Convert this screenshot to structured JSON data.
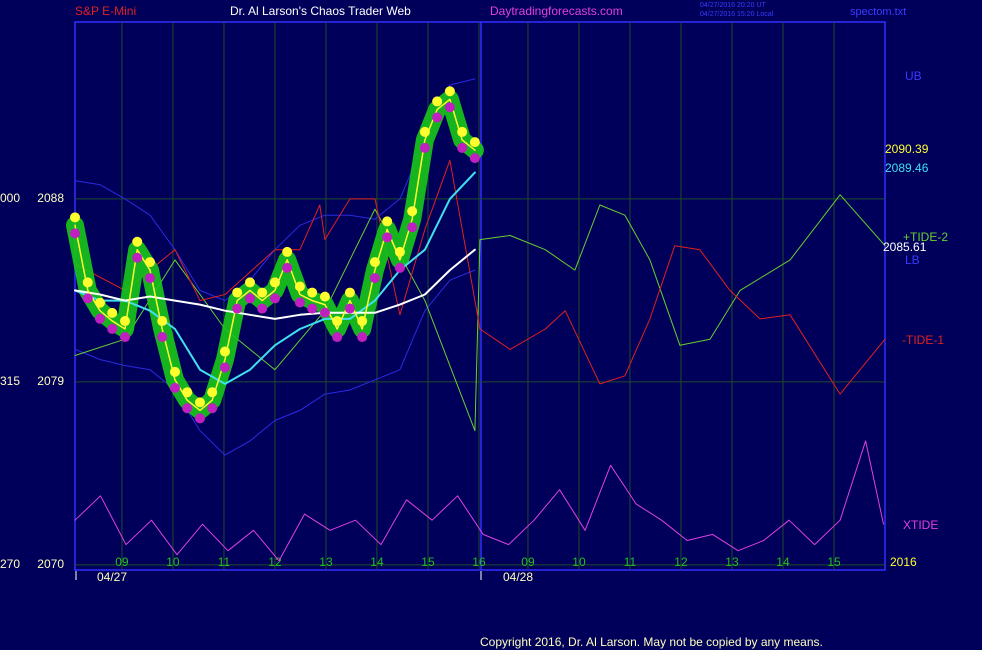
{
  "chart_data": {
    "type": "line",
    "title": "Dr. Al Larson's Chaos Trader Web",
    "subtitle": "S&P E-Mini",
    "annotations": [
      "Daytradingforecasts.com",
      "04/27/2016 20:20 UT",
      "04/27/2016 15:20 Local",
      "spectom.txt",
      "2090.39",
      "2089.46",
      "2085.61",
      "2016",
      "000",
      "315",
      "270",
      "Copyright 2016, Dr. Al Larson. May not be copied by any means."
    ],
    "dates": [
      "04/27",
      "04/28"
    ],
    "xlim": [
      0,
      15.88
    ],
    "ylim": [
      2069.75,
      2096.7
    ],
    "yticks": [
      2070,
      2079,
      2088
    ],
    "xticks": [
      {
        "value": 0.92,
        "label": "09"
      },
      {
        "value": 1.92,
        "label": "10"
      },
      {
        "value": 2.92,
        "label": "11"
      },
      {
        "value": 3.92,
        "label": "12"
      },
      {
        "value": 4.92,
        "label": "13"
      },
      {
        "value": 5.92,
        "label": "14"
      },
      {
        "value": 6.92,
        "label": "15"
      },
      {
        "value": 7.92,
        "label": "16"
      },
      {
        "value": 8.88,
        "label": "09"
      },
      {
        "value": 9.88,
        "label": "10"
      },
      {
        "value": 10.88,
        "label": "11"
      },
      {
        "value": 11.88,
        "label": "12"
      },
      {
        "value": 12.88,
        "label": "13"
      },
      {
        "value": 13.88,
        "label": "14"
      },
      {
        "value": 14.88,
        "label": "15"
      }
    ],
    "grid": true,
    "series": [
      {
        "name": "UB",
        "color": "#2a2ae0",
        "width": 1,
        "x": [
          0,
          0.49,
          0.98,
          1.47,
          1.96,
          2.45,
          2.94,
          3.43,
          3.92,
          4.41,
          4.9,
          5.39,
          5.88,
          6.37,
          6.86,
          7.35,
          7.84
        ],
        "values": [
          2088.9,
          2088.7,
          2088.0,
          2087.2,
          2085.5,
          2083.5,
          2083.0,
          2084.0,
          2085.5,
          2086.7,
          2087.2,
          2087.2,
          2087.0,
          2088.0,
          2090.9,
          2093.6,
          2093.9
        ]
      },
      {
        "name": "LB",
        "color": "#2a2ae0",
        "width": 1,
        "x": [
          0,
          0.49,
          0.98,
          1.47,
          1.96,
          2.45,
          2.94,
          3.43,
          3.92,
          4.41,
          4.9,
          5.39,
          5.88,
          6.37,
          6.86,
          7.35,
          7.84
        ],
        "values": [
          2080.6,
          2080.1,
          2079.8,
          2079.6,
          2078.6,
          2076.6,
          2075.4,
          2076.1,
          2077.1,
          2077.6,
          2078.4,
          2078.6,
          2079.1,
          2079.6,
          2082.5,
          2084.0,
          2084.5
        ]
      },
      {
        "name": "+TIDE-2",
        "color": "#66d030",
        "width": 1,
        "x": [
          0,
          0.98,
          1.96,
          2.94,
          3.92,
          4.9,
          5.88,
          6.86,
          7.84,
          7.94,
          8.53,
          9.22,
          9.8,
          10.29,
          10.78,
          11.27,
          11.86,
          12.45,
          13.04,
          14.02,
          15.0,
          15.88
        ],
        "values": [
          2080.3,
          2081.1,
          2085.0,
          2081.6,
          2079.6,
          2082.5,
          2087.5,
          2083.0,
          2076.6,
          2086.0,
          2086.2,
          2085.5,
          2084.5,
          2087.7,
          2087.2,
          2085.0,
          2080.8,
          2081.1,
          2083.5,
          2085.0,
          2088.2,
          2085.7
        ]
      },
      {
        "name": "-TIDE-1",
        "color": "#e02020",
        "width": 1,
        "x": [
          0,
          0.98,
          1.96,
          2.45,
          2.94,
          3.92,
          4.41,
          4.8,
          4.9,
          5.39,
          5.88,
          6.37,
          6.86,
          7.35,
          7.94,
          8.53,
          9.22,
          9.61,
          10.29,
          10.78,
          11.27,
          11.76,
          12.25,
          12.84,
          13.43,
          14.02,
          15.0,
          15.88
        ],
        "values": [
          2084.8,
          2083.5,
          2085.5,
          2083.0,
          2083.3,
          2085.5,
          2085.5,
          2087.7,
          2086.0,
          2088.0,
          2088.0,
          2082.3,
          2086.5,
          2089.9,
          2081.6,
          2080.6,
          2081.6,
          2082.5,
          2078.9,
          2079.3,
          2082.1,
          2085.7,
          2085.5,
          2083.5,
          2082.1,
          2082.3,
          2078.4,
          2081.1
        ]
      },
      {
        "name": "XTIDE",
        "color": "#e040e0",
        "width": 1,
        "x": [
          0,
          0.5,
          1,
          1.5,
          2,
          2.5,
          3,
          3.5,
          4,
          4.5,
          5,
          5.5,
          6,
          6.5,
          7,
          7.5,
          8,
          8.5,
          9,
          9.5,
          10,
          10.5,
          11,
          11.5,
          12,
          12.5,
          13,
          13.5,
          14,
          14.5,
          15,
          15.5,
          15.85
        ],
        "values": [
          2072.2,
          2073.4,
          2071.0,
          2072.2,
          2070.5,
          2072.0,
          2070.7,
          2071.7,
          2070.2,
          2072.5,
          2071.7,
          2072.2,
          2071.0,
          2073.2,
          2072.2,
          2073.4,
          2071.5,
          2071.0,
          2072.2,
          2073.7,
          2071.7,
          2074.9,
          2073.0,
          2072.2,
          2071.2,
          2071.5,
          2070.7,
          2071.2,
          2072.2,
          2071.0,
          2072.2,
          2076.1,
          2072.0
        ]
      },
      {
        "color": "#18c818",
        "width": 18,
        "opacity": 0.9,
        "x": [
          0,
          0.25,
          0.49,
          0.73,
          0.98,
          1.22,
          1.47,
          1.71,
          1.96,
          2.2,
          2.45,
          2.69,
          2.94,
          3.18,
          3.43,
          3.67,
          3.92,
          4.16,
          4.41,
          4.65,
          4.9,
          5.14,
          5.39,
          5.63,
          5.88,
          6.12,
          6.37,
          6.61,
          6.86,
          7.1,
          7.35,
          7.59,
          7.84
        ],
        "values": [
          2086.7,
          2083.5,
          2082.5,
          2082.0,
          2081.6,
          2085.5,
          2084.5,
          2081.6,
          2079.1,
          2078.1,
          2077.6,
          2078.1,
          2080.1,
          2083.0,
          2083.5,
          2083.0,
          2083.5,
          2085.0,
          2083.3,
          2083.0,
          2082.8,
          2081.6,
          2083.0,
          2081.6,
          2084.5,
          2086.5,
          2085.0,
          2087.0,
          2090.9,
          2092.4,
          2092.9,
          2090.9,
          2090.4
        ]
      },
      {
        "color": "#40e0f0",
        "width": 2,
        "x": [
          0,
          0.49,
          0.98,
          1.47,
          1.96,
          2.45,
          2.94,
          3.43,
          3.92,
          4.41,
          4.9,
          5.39,
          5.88,
          6.37,
          6.86,
          7.35,
          7.84
        ],
        "values": [
          2083.5,
          2083.0,
          2083.0,
          2082.5,
          2081.6,
          2079.6,
          2078.9,
          2079.6,
          2080.8,
          2081.6,
          2082.1,
          2082.1,
          2083.0,
          2084.5,
          2085.5,
          2088.0,
          2089.3
        ]
      },
      {
        "color": "#ffffff",
        "width": 2,
        "x": [
          0,
          0.49,
          0.98,
          1.47,
          1.96,
          2.45,
          2.94,
          3.43,
          3.92,
          4.41,
          4.9,
          5.39,
          5.88,
          6.37,
          6.86,
          7.35,
          7.84
        ],
        "values": [
          2083.5,
          2083.3,
          2083.0,
          2083.2,
          2083.0,
          2082.8,
          2082.5,
          2082.3,
          2082.1,
          2082.3,
          2082.4,
          2082.4,
          2082.4,
          2082.8,
          2083.3,
          2084.5,
          2085.5
        ]
      },
      {
        "color": "#ffff30",
        "width": 1.5,
        "markers": true,
        "x": [
          0,
          0.25,
          0.49,
          0.73,
          0.98,
          1.22,
          1.47,
          1.71,
          1.96,
          2.2,
          2.45,
          2.69,
          2.94,
          3.18,
          3.43,
          3.67,
          3.92,
          4.16,
          4.41,
          4.65,
          4.9,
          5.14,
          5.39,
          5.63,
          5.88,
          6.12,
          6.37,
          6.61,
          6.86,
          7.1,
          7.35,
          7.59,
          7.84
        ],
        "values": [
          2086.7,
          2083.5,
          2082.5,
          2082.0,
          2081.6,
          2085.5,
          2084.5,
          2081.6,
          2079.1,
          2078.1,
          2077.6,
          2078.1,
          2080.1,
          2083.0,
          2083.5,
          2083.0,
          2083.5,
          2085.0,
          2083.3,
          2083.0,
          2082.8,
          2081.6,
          2083.0,
          2081.6,
          2084.5,
          2086.5,
          2085.0,
          2087.0,
          2090.9,
          2092.4,
          2092.9,
          2090.9,
          2090.4
        ]
      }
    ]
  }
}
